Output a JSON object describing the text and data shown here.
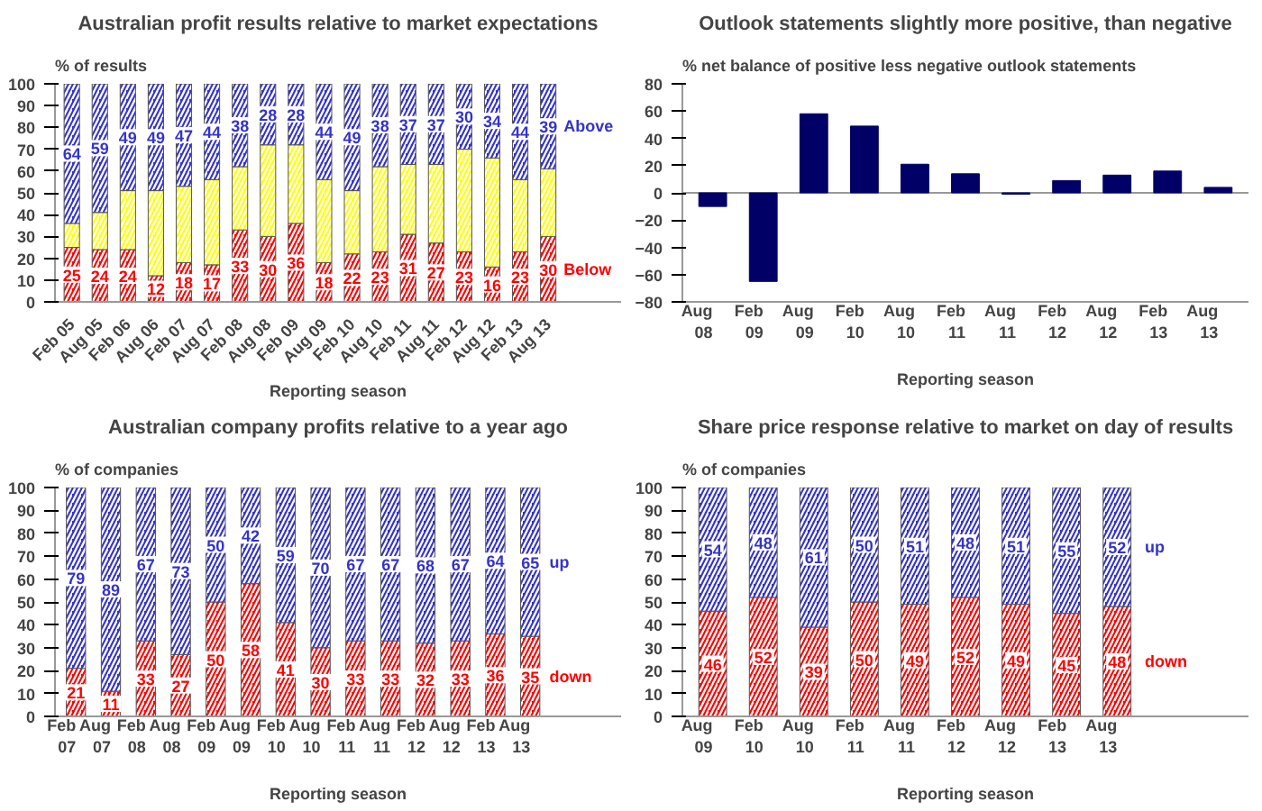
{
  "chart_data": [
    {
      "type": "bar",
      "title": "Australian profit results relative to market expectations",
      "ylabel": "% of results",
      "xlabel": "Reporting season",
      "stacked": true,
      "categories": [
        "Feb 05",
        "Aug 05",
        "Feb 06",
        "Aug 06",
        "Feb 07",
        "Aug 07",
        "Feb 08",
        "Aug 08",
        "Feb 09",
        "Aug 09",
        "Feb 10",
        "Aug 10",
        "Feb 11",
        "Aug 11",
        "Feb 12",
        "Aug 12",
        "Feb 13",
        "Aug 13"
      ],
      "series": [
        {
          "name": "Below",
          "color": "#ff0000",
          "values": [
            25,
            24,
            24,
            12,
            18,
            17,
            33,
            30,
            36,
            18,
            22,
            23,
            31,
            27,
            23,
            16,
            23,
            30
          ],
          "value_labels": [
            "25",
            "24",
            "24",
            "12",
            "18",
            "17",
            "33",
            "30",
            "36",
            "18",
            "22",
            "23",
            "31",
            "27",
            "23",
            "16",
            "23",
            "30"
          ]
        },
        {
          "color": "#ffff00",
          "values": [
            11,
            17,
            27,
            39,
            35,
            39,
            29,
            42,
            36,
            38,
            29,
            39,
            32,
            36,
            47,
            50,
            33,
            31
          ]
        },
        {
          "name": "Above",
          "color": "#3333cc",
          "values": [
            64,
            59,
            49,
            49,
            47,
            44,
            38,
            28,
            28,
            44,
            49,
            38,
            37,
            37,
            30,
            34,
            44,
            39
          ],
          "value_labels": [
            "64",
            "59",
            "49",
            "49",
            "47",
            "44",
            "38",
            "28",
            "28",
            "44",
            "49",
            "38",
            "37",
            "37",
            "30",
            "34",
            "44",
            "39"
          ]
        }
      ],
      "ylim": [
        0,
        100
      ],
      "yticks": [
        0,
        10,
        20,
        30,
        40,
        50,
        60,
        70,
        80,
        90,
        100
      ],
      "grid": false,
      "legend": false
    },
    {
      "type": "bar",
      "title": "Outlook statements slightly more positive, than negative",
      "ylabel": "% net balance of positive less negative outlook statements",
      "xlabel": "Reporting season",
      "categories": [
        "Aug 08",
        "Feb 09",
        "Aug 09",
        "Feb 10",
        "Aug 10",
        "Feb 11",
        "Aug 11",
        "Feb 12",
        "Aug 12",
        "Feb 13",
        "Aug 13"
      ],
      "series": [
        {
          "color": "#000066",
          "values": [
            -10,
            -65,
            58,
            49,
            21,
            14,
            -1,
            9,
            13,
            16,
            4
          ]
        }
      ],
      "ylim": [
        -80,
        80
      ],
      "yticks": [
        -80,
        -60,
        -40,
        -20,
        0,
        20,
        40,
        60,
        80
      ],
      "ref_lines": [
        {
          "axis": "y",
          "value": 0,
          "color": "#999999"
        }
      ],
      "grid": false,
      "legend": false
    },
    {
      "type": "bar",
      "title": "Australian company profits relative to a year ago",
      "ylabel": "% of companies",
      "xlabel": "Reporting season",
      "stacked": true,
      "categories": [
        "Feb 07",
        "Aug 07",
        "Feb 08",
        "Aug 08",
        "Feb 09",
        "Aug 09",
        "Feb 10",
        "Aug 10",
        "Feb 11",
        "Aug 11",
        "Feb 12",
        "Aug 12",
        "Feb 13",
        "Aug 13"
      ],
      "series": [
        {
          "name": "down",
          "color": "#ff0000",
          "values": [
            21,
            11,
            33,
            27,
            50,
            58,
            41,
            30,
            33,
            33,
            32,
            33,
            36,
            35
          ],
          "value_labels": [
            "21",
            "11",
            "33",
            "27",
            "50",
            "58",
            "41",
            "30",
            "33",
            "33",
            "32",
            "33",
            "36",
            "35"
          ]
        },
        {
          "name": "up",
          "color": "#3333cc",
          "values": [
            79,
            89,
            67,
            73,
            50,
            42,
            59,
            70,
            67,
            67,
            68,
            67,
            64,
            65
          ],
          "value_labels": [
            "79",
            "89",
            "67",
            "73",
            "50",
            "42",
            "59",
            "70",
            "67",
            "67",
            "68",
            "67",
            "64",
            "65"
          ]
        }
      ],
      "ylim": [
        0,
        100
      ],
      "yticks": [
        0,
        10,
        20,
        30,
        40,
        50,
        60,
        70,
        80,
        90,
        100
      ],
      "grid": false,
      "legend": false
    },
    {
      "type": "bar",
      "title": "Share price response relative to market on day of results",
      "ylabel": "% of companies",
      "xlabel": "Reporting season",
      "stacked": true,
      "categories": [
        "Aug 09",
        "Feb 10",
        "Aug 10",
        "Feb 11",
        "Aug 11",
        "Feb 12",
        "Aug 12",
        "Feb 13",
        "Aug 13"
      ],
      "series": [
        {
          "name": "down",
          "color": "#ff0000",
          "values": [
            46,
            52,
            39,
            50,
            49,
            52,
            49,
            45,
            48
          ],
          "value_labels": [
            "46",
            "52",
            "39",
            "50",
            "49",
            "52",
            "49",
            "45",
            "48"
          ]
        },
        {
          "name": "up",
          "color": "#3333cc",
          "values": [
            54,
            48,
            61,
            50,
            51,
            48,
            51,
            55,
            52
          ],
          "value_labels": [
            "54",
            "48",
            "61",
            "50",
            "51",
            "48",
            "51",
            "55",
            "52"
          ]
        }
      ],
      "ylim": [
        0,
        100
      ],
      "yticks": [
        0,
        10,
        20,
        30,
        40,
        50,
        60,
        70,
        80,
        90,
        100
      ],
      "grid": false,
      "legend": false
    }
  ]
}
